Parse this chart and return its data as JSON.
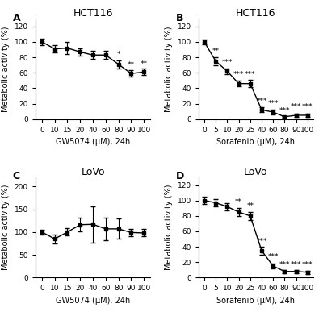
{
  "panel_A": {
    "title": "HCT116",
    "label": "A",
    "x_vals": [
      0,
      10,
      15,
      20,
      40,
      60,
      80,
      90,
      100
    ],
    "x_labels": [
      "0",
      "10",
      "15",
      "20",
      "40",
      "60",
      "80",
      "90",
      "100"
    ],
    "y": [
      100,
      91,
      92,
      87,
      83,
      83,
      71,
      59,
      61
    ],
    "yerr": [
      4,
      5,
      8,
      5,
      5,
      5,
      5,
      4,
      4
    ],
    "xlabel": "GW5074 (μM), 24h",
    "ylabel": "Metabolic activity (%)",
    "ylim": [
      0,
      130
    ],
    "yticks": [
      0,
      20,
      40,
      60,
      80,
      100,
      120
    ],
    "significance": [
      {
        "xi": 6,
        "y": 79,
        "text": "*"
      },
      {
        "xi": 7,
        "y": 65,
        "text": "**"
      },
      {
        "xi": 8,
        "y": 67,
        "text": "**"
      }
    ]
  },
  "panel_B": {
    "title": "HCT116",
    "label": "B",
    "x_vals": [
      0,
      5,
      10,
      20,
      25,
      40,
      60,
      80,
      90,
      100
    ],
    "x_labels": [
      "0",
      "5",
      "10",
      "20",
      "25",
      "40",
      "60",
      "80",
      "90",
      "100"
    ],
    "y": [
      100,
      75,
      62,
      46,
      46,
      12,
      9,
      3,
      5,
      5
    ],
    "yerr": [
      3,
      5,
      4,
      4,
      5,
      3,
      3,
      1,
      2,
      2
    ],
    "xlabel": "Sorafenib (μM), 24h",
    "ylabel": "Metabolic activity (%)",
    "ylim": [
      0,
      130
    ],
    "yticks": [
      0,
      20,
      40,
      60,
      80,
      100,
      120
    ],
    "significance": [
      {
        "xi": 1,
        "y": 83,
        "text": "**"
      },
      {
        "xi": 2,
        "y": 69,
        "text": "***"
      },
      {
        "xi": 3,
        "y": 53,
        "text": "***"
      },
      {
        "xi": 4,
        "y": 53,
        "text": "***"
      },
      {
        "xi": 5,
        "y": 18,
        "text": "***"
      },
      {
        "xi": 6,
        "y": 15,
        "text": "***"
      },
      {
        "xi": 7,
        "y": 6,
        "text": "***"
      },
      {
        "xi": 8,
        "y": 11,
        "text": "***"
      },
      {
        "xi": 9,
        "y": 11,
        "text": "***"
      }
    ]
  },
  "panel_C": {
    "title": "LoVo",
    "label": "C",
    "x_vals": [
      0,
      10,
      15,
      20,
      40,
      60,
      80,
      90,
      100
    ],
    "x_labels": [
      "0",
      "10",
      "15",
      "20",
      "40",
      "60",
      "80",
      "90",
      "100"
    ],
    "y": [
      100,
      85,
      100,
      116,
      117,
      107,
      107,
      99,
      98
    ],
    "yerr": [
      5,
      10,
      8,
      15,
      40,
      25,
      22,
      8,
      8
    ],
    "xlabel": "GW5074 (μM), 24h",
    "ylabel": "Metabolic activity (%)",
    "ylim": [
      0,
      220
    ],
    "yticks": [
      0,
      50,
      100,
      150,
      200
    ],
    "significance": []
  },
  "panel_D": {
    "title": "LoVo",
    "label": "D",
    "x_vals": [
      0,
      5,
      10,
      20,
      25,
      40,
      60,
      80,
      90,
      100
    ],
    "x_labels": [
      "0",
      "5",
      "10",
      "20",
      "25",
      "40",
      "60",
      "80",
      "90",
      "100"
    ],
    "y": [
      100,
      97,
      92,
      85,
      80,
      35,
      15,
      8,
      8,
      7
    ],
    "yerr": [
      5,
      5,
      5,
      5,
      5,
      5,
      3,
      2,
      2,
      2
    ],
    "xlabel": "Sorafenib (μM), 24h",
    "ylabel": "Metabolic activity (%)",
    "ylim": [
      0,
      130
    ],
    "yticks": [
      0,
      20,
      40,
      60,
      80,
      100,
      120
    ],
    "significance": [
      {
        "xi": 3,
        "y": 93,
        "text": "**"
      },
      {
        "xi": 4,
        "y": 88,
        "text": "**"
      },
      {
        "xi": 5,
        "y": 42,
        "text": "***"
      },
      {
        "xi": 6,
        "y": 22,
        "text": "***"
      },
      {
        "xi": 7,
        "y": 12,
        "text": "***"
      },
      {
        "xi": 8,
        "y": 12,
        "text": "***"
      },
      {
        "xi": 9,
        "y": 12,
        "text": "***"
      }
    ]
  },
  "line_color": "#000000",
  "marker": "s",
  "markersize": 3.5,
  "linewidth": 1.0,
  "capsize": 2.5,
  "elinewidth": 0.8,
  "fontsize_title": 9,
  "fontsize_label": 7,
  "fontsize_tick": 6.5,
  "fontsize_panel_label": 9,
  "fontsize_significance": 6.5
}
